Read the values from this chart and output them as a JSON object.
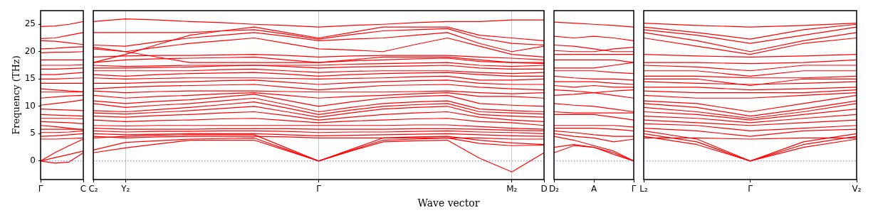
{
  "chart_data": [
    {
      "type": "line",
      "ylabel": "Frequency (THz)",
      "categories": [
        "Γ",
        null,
        null,
        "C"
      ],
      "ylim": [
        -3.4,
        27.5
      ],
      "yticks": [
        0,
        5,
        10,
        15,
        20,
        25
      ],
      "legend": false,
      "ref_lines": [
        {
          "axis": "y",
          "value": 0,
          "color": "#7777ee",
          "line_style": "dotted"
        }
      ],
      "series": [
        {
          "color": "#ff0000",
          "values": [
            0,
            -0.4,
            -0.2,
            1.5
          ]
        },
        {
          "color": "#ff0000",
          "values": [
            0,
            0.6,
            1.2,
            1.8
          ]
        },
        {
          "color": "#ff0000",
          "values": [
            0,
            1.5,
            2.8,
            4.0
          ]
        },
        {
          "color": "#ff0000",
          "values": [
            4.0,
            4.0,
            4.1,
            4.2
          ]
        },
        {
          "color": "#ff0000",
          "values": [
            4.5,
            4.6,
            4.8,
            5.0
          ]
        },
        {
          "color": "#ff0000",
          "values": [
            5.2,
            5.2,
            5.3,
            5.5
          ]
        },
        {
          "color": "#ff0000",
          "values": [
            5.8,
            5.8,
            5.8,
            5.8
          ]
        },
        {
          "color": "#ff0000",
          "values": [
            6.5,
            6.3,
            6.0,
            5.7
          ]
        },
        {
          "color": "#ff0000",
          "values": [
            7.2,
            7.1,
            7.0,
            6.8
          ]
        },
        {
          "color": "#ff0000",
          "values": [
            7.8,
            7.8,
            7.8,
            7.7
          ]
        },
        {
          "color": "#ff0000",
          "values": [
            8.5,
            8.4,
            8.3,
            8.2
          ]
        },
        {
          "color": "#ff0000",
          "values": [
            9.5,
            9.4,
            9.3,
            9.2
          ]
        },
        {
          "color": "#ff0000",
          "values": [
            10.2,
            10.5,
            10.8,
            11.2
          ]
        },
        {
          "color": "#ff0000",
          "values": [
            11.5,
            11.7,
            11.9,
            12.0
          ]
        },
        {
          "color": "#ff0000",
          "values": [
            12.6,
            12.6,
            12.6,
            12.6
          ]
        },
        {
          "color": "#ff0000",
          "values": [
            13.2,
            13.0,
            12.8,
            12.7
          ]
        },
        {
          "color": "#ff0000",
          "values": [
            14.2,
            14.2,
            14.2,
            14.2
          ]
        },
        {
          "color": "#ff0000",
          "values": [
            15.0,
            15.0,
            15.1,
            15.2
          ]
        },
        {
          "color": "#ff0000",
          "values": [
            15.8,
            15.8,
            16.0,
            16.2
          ]
        },
        {
          "color": "#ff0000",
          "values": [
            16.8,
            16.8,
            16.9,
            17.0
          ]
        },
        {
          "color": "#ff0000",
          "values": [
            17.5,
            17.5,
            17.5,
            17.6
          ]
        },
        {
          "color": "#ff0000",
          "values": [
            18.5,
            18.5,
            18.5,
            18.5
          ]
        },
        {
          "color": "#ff0000",
          "values": [
            19.8,
            19.9,
            19.9,
            20.0
          ]
        },
        {
          "color": "#ff0000",
          "values": [
            20.5,
            20.6,
            20.8,
            20.9
          ]
        },
        {
          "color": "#ff0000",
          "values": [
            22.0,
            21.9,
            21.6,
            21.3
          ]
        },
        {
          "color": "#ff0000",
          "values": [
            22.4,
            22.5,
            23.0,
            23.5
          ]
        },
        {
          "color": "#ff0000",
          "values": [
            24.6,
            24.7,
            25.0,
            25.5
          ]
        }
      ]
    },
    {
      "type": "line",
      "xlabel": "Wave vector",
      "categories": [
        "C₂",
        "Y₂",
        null,
        null,
        null,
        null,
        null,
        "Γ",
        null,
        null,
        null,
        null,
        null,
        "M₂",
        "D"
      ],
      "ylim": [
        -3.4,
        27.5
      ],
      "yticks": [
        0,
        5,
        10,
        15,
        20,
        25
      ],
      "tick_labels": "x",
      "grid": "x",
      "legend": false,
      "ref_lines": [
        {
          "axis": "y",
          "value": 0,
          "color": "#7777ee",
          "line_style": "dotted"
        }
      ],
      "series": [
        {
          "color": "#ff0000",
          "values": [
            1.5,
            2.4,
            3.1,
            3.8,
            3.8,
            3.8,
            1.9,
            0,
            1.8,
            3.5,
            3.7,
            3.8,
            0.5,
            -2.0,
            1.5
          ]
        },
        {
          "color": "#ff0000",
          "values": [
            2.0,
            3.4,
            3.7,
            4.0,
            4.1,
            4.2,
            2.1,
            0,
            1.9,
            3.8,
            4.0,
            4.2,
            3.2,
            2.8,
            2.9
          ]
        },
        {
          "color": "#ff0000",
          "values": [
            4.2,
            4.5,
            4.7,
            4.8,
            4.8,
            4.8,
            2.4,
            0,
            2.1,
            4.2,
            4.4,
            4.5,
            3.8,
            3.3,
            3.0
          ]
        },
        {
          "color": "#ff0000",
          "values": [
            4.5,
            4.2,
            4.4,
            4.5,
            4.5,
            4.5,
            4.4,
            4.2,
            4.2,
            4.2,
            4.2,
            4.2,
            4.2,
            4.0,
            4.0
          ]
        },
        {
          "color": "#ff0000",
          "values": [
            5.0,
            4.8,
            4.9,
            5.0,
            5.0,
            5.0,
            4.8,
            4.6,
            4.7,
            4.8,
            4.9,
            5.0,
            4.8,
            4.6,
            4.5
          ]
        },
        {
          "color": "#ff0000",
          "values": [
            5.5,
            5.3,
            5.4,
            5.4,
            5.5,
            5.5,
            5.4,
            5.2,
            5.3,
            5.3,
            5.4,
            5.5,
            5.3,
            5.2,
            5.0
          ]
        },
        {
          "color": "#ff0000",
          "values": [
            6.0,
            5.8,
            5.8,
            5.8,
            5.9,
            5.9,
            5.9,
            5.8,
            5.8,
            5.8,
            5.9,
            5.9,
            5.8,
            5.6,
            5.5
          ]
        },
        {
          "color": "#ff0000",
          "values": [
            6.5,
            6.4,
            6.5,
            6.5,
            6.5,
            6.5,
            6.5,
            6.5,
            6.5,
            6.5,
            6.6,
            6.6,
            6.3,
            6.0,
            5.8
          ]
        },
        {
          "color": "#ff0000",
          "values": [
            7.5,
            7.2,
            7.4,
            7.5,
            7.7,
            7.8,
            7.4,
            7.0,
            7.3,
            7.5,
            7.7,
            7.8,
            7.2,
            7.0,
            6.5
          ]
        },
        {
          "color": "#ff0000",
          "values": [
            8.2,
            8.0,
            8.3,
            8.5,
            8.8,
            9.0,
            8.3,
            7.5,
            8.0,
            8.5,
            8.8,
            9.0,
            8.0,
            7.5,
            7.2
          ]
        },
        {
          "color": "#ff0000",
          "values": [
            8.8,
            8.6,
            8.9,
            9.2,
            9.6,
            10.0,
            9.0,
            8.0,
            8.8,
            9.5,
            9.8,
            10.0,
            8.5,
            8.2,
            8.0
          ]
        },
        {
          "color": "#ff0000",
          "values": [
            9.2,
            9.0,
            9.4,
            9.8,
            10.3,
            10.8,
            9.7,
            8.5,
            9.3,
            10.0,
            10.3,
            10.5,
            9.0,
            8.8,
            8.6
          ]
        },
        {
          "color": "#ff0000",
          "values": [
            10.5,
            9.8,
            10.2,
            10.5,
            11.0,
            11.5,
            10.3,
            9.0,
            9.8,
            10.5,
            10.8,
            11.0,
            9.5,
            9.2,
            9.0
          ]
        },
        {
          "color": "#ff0000",
          "values": [
            11.0,
            10.5,
            10.9,
            11.2,
            11.7,
            12.2,
            11.1,
            10.0,
            10.8,
            11.5,
            11.8,
            12.0,
            10.5,
            10.2,
            10.0
          ]
        },
        {
          "color": "#ff0000",
          "values": [
            12.0,
            11.5,
            11.8,
            12.0,
            12.3,
            12.5,
            12.0,
            11.5,
            11.8,
            12.0,
            12.3,
            12.5,
            11.8,
            11.8,
            11.5
          ]
        },
        {
          "color": "#ff0000",
          "values": [
            12.8,
            12.5,
            12.7,
            12.8,
            12.8,
            12.8,
            12.7,
            12.6,
            12.6,
            12.6,
            12.7,
            12.8,
            12.5,
            12.3,
            12.5
          ]
        },
        {
          "color": "#ff0000",
          "values": [
            13.2,
            13.5,
            13.7,
            13.8,
            13.9,
            14.0,
            13.5,
            13.0,
            13.4,
            13.8,
            13.9,
            14.0,
            13.5,
            13.2,
            13.0
          ]
        },
        {
          "color": "#ff0000",
          "values": [
            14.2,
            14.2,
            14.4,
            14.5,
            14.7,
            14.8,
            14.4,
            14.0,
            14.3,
            14.5,
            14.7,
            14.8,
            14.2,
            14.0,
            14.0
          ]
        },
        {
          "color": "#ff0000",
          "values": [
            15.2,
            15.0,
            15.1,
            15.2,
            15.2,
            15.2,
            15.1,
            15.0,
            15.1,
            15.2,
            15.4,
            15.5,
            14.8,
            14.8,
            15.0
          ]
        },
        {
          "color": "#ff0000",
          "values": [
            15.8,
            15.5,
            15.8,
            16.0,
            16.1,
            16.2,
            15.9,
            15.5,
            15.8,
            16.0,
            16.1,
            16.2,
            15.8,
            15.5,
            15.5
          ]
        },
        {
          "color": "#ff0000",
          "values": [
            16.5,
            16.5,
            16.5,
            16.5,
            16.7,
            16.8,
            16.5,
            16.2,
            16.4,
            16.5,
            16.5,
            16.5,
            16.2,
            16.0,
            16.2
          ]
        },
        {
          "color": "#ff0000",
          "values": [
            17.0,
            17.0,
            17.1,
            17.2,
            17.4,
            17.5,
            17.3,
            17.0,
            17.2,
            17.3,
            17.4,
            17.5,
            17.0,
            16.8,
            16.8
          ]
        },
        {
          "color": "#ff0000",
          "values": [
            17.5,
            17.3,
            17.4,
            17.5,
            17.5,
            17.5,
            17.5,
            17.5,
            17.7,
            17.8,
            17.9,
            18.0,
            17.5,
            17.3,
            17.5
          ]
        },
        {
          "color": "#ff0000",
          "values": [
            18.0,
            18.5,
            18.7,
            18.8,
            18.9,
            19.0,
            18.5,
            18.0,
            18.5,
            19.0,
            19.0,
            19.0,
            18.5,
            18.0,
            18.0
          ]
        },
        {
          "color": "#ff0000",
          "values": [
            19.0,
            19.2,
            19.3,
            19.3,
            19.4,
            19.5,
            19.3,
            19.0,
            19.2,
            19.3,
            19.3,
            19.3,
            19.0,
            18.8,
            18.5
          ]
        },
        {
          "color": "#ff0000",
          "values": [
            20.5,
            20.0,
            19.0,
            18.0,
            18.0,
            18.0,
            18.0,
            18.0,
            18.3,
            18.5,
            18.7,
            18.8,
            18.2,
            18.0,
            17.8
          ]
        },
        {
          "color": "#ff0000",
          "values": [
            20.8,
            20.0,
            20.8,
            21.5,
            22.0,
            22.5,
            21.5,
            20.5,
            20.3,
            20.0,
            21.3,
            22.5,
            21.0,
            19.5,
            19.0
          ]
        },
        {
          "color": "#ff0000",
          "values": [
            21.2,
            21.0,
            21.8,
            22.5,
            23.0,
            23.5,
            22.8,
            22.0,
            22.3,
            22.5,
            23.0,
            23.5,
            21.5,
            20.0,
            21.0
          ]
        },
        {
          "color": "#ff0000",
          "values": [
            23.5,
            23.5,
            23.5,
            23.5,
            23.8,
            24.0,
            23.2,
            22.3,
            23.1,
            23.8,
            24.0,
            24.2,
            22.5,
            21.5,
            21.2
          ]
        },
        {
          "color": "#ff0000",
          "values": [
            18.0,
            19.5,
            21.3,
            23.0,
            23.8,
            24.5,
            23.5,
            22.5,
            23.5,
            24.5,
            24.5,
            24.5,
            23.0,
            22.5,
            22.0
          ]
        },
        {
          "color": "#ff0000",
          "values": [
            25.5,
            26.0,
            25.8,
            25.5,
            25.3,
            25.0,
            24.8,
            24.5,
            24.8,
            25.0,
            25.3,
            25.5,
            25.5,
            25.8,
            25.8
          ]
        }
      ]
    },
    {
      "type": "line",
      "categories": [
        "D₂",
        null,
        "A",
        null,
        "Γ"
      ],
      "ylim": [
        -3.4,
        27.5
      ],
      "yticks": [
        0,
        5,
        10,
        15,
        20,
        25
      ],
      "tick_labels": "x",
      "legend": false,
      "ref_lines": [
        {
          "axis": "y",
          "value": 0,
          "color": "#7777ee",
          "line_style": "dotted"
        }
      ],
      "series": [
        {
          "color": "#ff0000",
          "values": [
            1.5,
            2.8,
            2.5,
            1.5,
            0
          ]
        },
        {
          "color": "#ff0000",
          "values": [
            2.5,
            3.0,
            2.5,
            1.2,
            0
          ]
        },
        {
          "color": "#ff0000",
          "values": [
            4.5,
            3.8,
            2.8,
            1.8,
            0
          ]
        },
        {
          "color": "#ff0000",
          "values": [
            5.0,
            4.5,
            4.2,
            3.5,
            4.0
          ]
        },
        {
          "color": "#ff0000",
          "values": [
            5.5,
            5.2,
            4.8,
            4.5,
            4.5
          ]
        },
        {
          "color": "#ff0000",
          "values": [
            6.0,
            6.0,
            6.0,
            5.8,
            5.5
          ]
        },
        {
          "color": "#ff0000",
          "values": [
            6.5,
            6.5,
            6.5,
            6.5,
            6.2
          ]
        },
        {
          "color": "#ff0000",
          "values": [
            8.5,
            8.5,
            8.5,
            8.0,
            7.5
          ]
        },
        {
          "color": "#ff0000",
          "values": [
            9.0,
            8.8,
            8.8,
            8.8,
            8.8
          ]
        },
        {
          "color": "#ff0000",
          "values": [
            10.5,
            10.2,
            10.0,
            9.5,
            9.0
          ]
        },
        {
          "color": "#ff0000",
          "values": [
            12.0,
            12.2,
            12.5,
            12.8,
            13.0
          ]
        },
        {
          "color": "#ff0000",
          "values": [
            13.0,
            12.8,
            12.5,
            12.0,
            11.5
          ]
        },
        {
          "color": "#ff0000",
          "values": [
            13.8,
            13.5,
            13.8,
            13.5,
            13.5
          ]
        },
        {
          "color": "#ff0000",
          "values": [
            14.5,
            14.5,
            14.5,
            14.2,
            14.0
          ]
        },
        {
          "color": "#ff0000",
          "values": [
            15.5,
            15.2,
            15.0,
            15.0,
            14.8
          ]
        },
        {
          "color": "#ff0000",
          "values": [
            16.5,
            16.5,
            16.5,
            16.2,
            16.0
          ]
        },
        {
          "color": "#ff0000",
          "values": [
            17.0,
            17.0,
            17.0,
            17.5,
            18.0
          ]
        },
        {
          "color": "#ff0000",
          "values": [
            18.5,
            18.5,
            18.5,
            18.5,
            18.0
          ]
        },
        {
          "color": "#ff0000",
          "values": [
            19.5,
            19.5,
            19.5,
            19.5,
            19.5
          ]
        },
        {
          "color": "#ff0000",
          "values": [
            20.2,
            20.0,
            20.0,
            20.5,
            20.8
          ]
        },
        {
          "color": "#ff0000",
          "values": [
            21.2,
            21.0,
            20.5,
            20.0,
            20.0
          ]
        },
        {
          "color": "#ff0000",
          "values": [
            22.8,
            22.5,
            22.8,
            22.5,
            22.0
          ]
        },
        {
          "color": "#ff0000",
          "values": [
            25.4,
            25.2,
            25.0,
            24.8,
            24.5
          ]
        }
      ]
    },
    {
      "type": "line",
      "categories": [
        "L₂",
        null,
        "Γ",
        null,
        "V₂"
      ],
      "ylim": [
        -3.4,
        27.5
      ],
      "yticks": [
        0,
        5,
        10,
        15,
        20,
        25
      ],
      "tick_labels": "x",
      "legend": false,
      "ref_lines": [
        {
          "axis": "y",
          "value": 0,
          "color": "#7777ee",
          "line_style": "dotted"
        }
      ],
      "series": [
        {
          "color": "#ff0000",
          "values": [
            4.5,
            3.0,
            0,
            2.5,
            4.0
          ]
        },
        {
          "color": "#ff0000",
          "values": [
            5.0,
            3.5,
            0,
            3.0,
            4.5
          ]
        },
        {
          "color": "#ff0000",
          "values": [
            5.5,
            4.0,
            0,
            3.5,
            5.0
          ]
        },
        {
          "color": "#ff0000",
          "values": [
            4.2,
            4.2,
            4.0,
            4.2,
            4.2
          ]
        },
        {
          "color": "#ff0000",
          "values": [
            6.0,
            5.5,
            4.5,
            5.5,
            5.8
          ]
        },
        {
          "color": "#ff0000",
          "values": [
            6.8,
            6.5,
            5.5,
            6.0,
            6.5
          ]
        },
        {
          "color": "#ff0000",
          "values": [
            7.5,
            7.0,
            6.5,
            7.0,
            7.5
          ]
        },
        {
          "color": "#ff0000",
          "values": [
            8.2,
            7.8,
            7.0,
            7.8,
            8.5
          ]
        },
        {
          "color": "#ff0000",
          "values": [
            9.0,
            8.5,
            7.5,
            8.5,
            9.5
          ]
        },
        {
          "color": "#ff0000",
          "values": [
            9.8,
            9.0,
            7.8,
            9.0,
            10.5
          ]
        },
        {
          "color": "#ff0000",
          "values": [
            10.5,
            9.8,
            8.2,
            9.5,
            11.0
          ]
        },
        {
          "color": "#ff0000",
          "values": [
            11.0,
            10.5,
            9.0,
            10.5,
            12.0
          ]
        },
        {
          "color": "#ff0000",
          "values": [
            12.0,
            11.5,
            11.5,
            12.0,
            12.5
          ]
        },
        {
          "color": "#ff0000",
          "values": [
            12.8,
            12.5,
            12.5,
            12.5,
            13.0
          ]
        },
        {
          "color": "#ff0000",
          "values": [
            13.5,
            13.5,
            13.0,
            13.2,
            13.5
          ]
        },
        {
          "color": "#ff0000",
          "values": [
            14.5,
            14.2,
            14.0,
            14.2,
            14.5
          ]
        },
        {
          "color": "#ff0000",
          "values": [
            15.0,
            15.0,
            13.8,
            15.0,
            15.0
          ]
        },
        {
          "color": "#ff0000",
          "values": [
            15.5,
            15.5,
            15.2,
            15.2,
            15.5
          ]
        },
        {
          "color": "#ff0000",
          "values": [
            16.5,
            16.5,
            15.5,
            16.5,
            16.5
          ]
        },
        {
          "color": "#ff0000",
          "values": [
            17.5,
            17.2,
            16.5,
            17.5,
            17.5
          ]
        },
        {
          "color": "#ff0000",
          "values": [
            18.0,
            18.0,
            17.8,
            18.0,
            18.5
          ]
        },
        {
          "color": "#ff0000",
          "values": [
            19.5,
            19.2,
            19.0,
            19.2,
            19.5
          ]
        },
        {
          "color": "#ff0000",
          "values": [
            22.5,
            21.0,
            19.5,
            21.5,
            22.5
          ]
        },
        {
          "color": "#ff0000",
          "values": [
            23.5,
            22.0,
            20.0,
            22.0,
            23.5
          ]
        },
        {
          "color": "#ff0000",
          "values": [
            24.0,
            23.0,
            21.5,
            23.0,
            24.5
          ]
        },
        {
          "color": "#ff0000",
          "values": [
            24.5,
            23.5,
            22.3,
            24.0,
            25.0
          ]
        },
        {
          "color": "#ff0000",
          "values": [
            25.2,
            24.8,
            24.5,
            24.8,
            25.2
          ]
        }
      ]
    }
  ]
}
